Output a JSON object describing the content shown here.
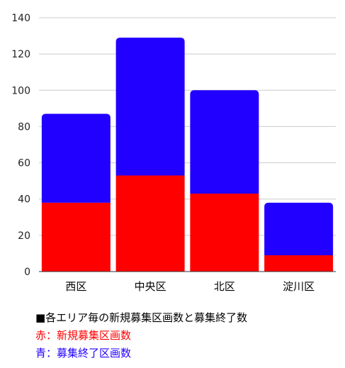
{
  "chart_data": {
    "type": "bar",
    "stacked": true,
    "categories": [
      "西区",
      "中央区",
      "北区",
      "淀川区"
    ],
    "series": [
      {
        "name": "新規募集区画数",
        "color": "#ff0000",
        "values": [
          38,
          53,
          43,
          9
        ]
      },
      {
        "name": "募集終了区画数",
        "color": "#2200ff",
        "values": [
          49,
          76,
          57,
          29
        ]
      }
    ],
    "ylim": [
      0,
      140
    ],
    "yticks": [
      0,
      20,
      40,
      60,
      80,
      100,
      120,
      140
    ],
    "grid": true,
    "legend_position": "bottom-left",
    "xlabel": "",
    "ylabel": "",
    "title": ""
  },
  "legend": {
    "heading": "■各エリア毎の新規募集区画数と募集終了数",
    "line_red": "赤：新規募集区画数",
    "line_blue": "青：募集終了区画数"
  },
  "colors": {
    "red": "#ff0000",
    "blue": "#2200ff",
    "text": "#000000",
    "grid": "#cccccc"
  }
}
